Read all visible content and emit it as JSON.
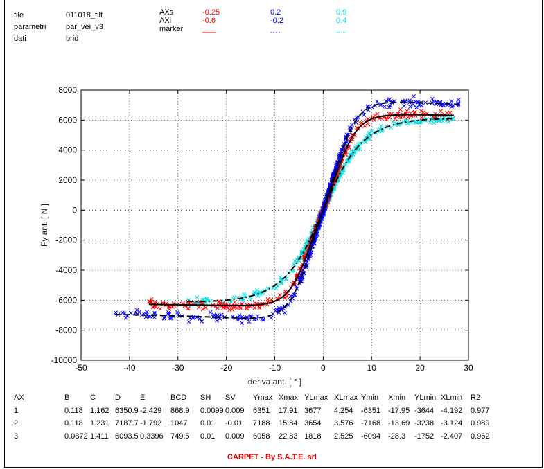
{
  "header": {
    "labels": [
      "file",
      "parametri",
      "dati"
    ],
    "values": [
      "011018_filt",
      "par_vei_v3",
      "brid"
    ],
    "axs_label": "AXs",
    "axi_label": "AXi",
    "marker_label": "marker",
    "axs": [
      "-0.25",
      "0.2",
      "0.9"
    ],
    "axi": [
      "-0.6",
      "-0.2",
      "0.4"
    ],
    "marker_styles": [
      "solid",
      "dotted",
      "dashdot"
    ],
    "series_colors": [
      "#ff0000",
      "#0000ff",
      "#00dddd"
    ]
  },
  "chart_data": {
    "type": "scatter",
    "xlabel": "deriva ant.  [ ° ]",
    "ylabel": "Fy ant. [ N ]",
    "xlim": [
      -50,
      30
    ],
    "ylim": [
      -10000,
      8000
    ],
    "xticks": [
      -50,
      -40,
      -30,
      -20,
      -10,
      0,
      10,
      20,
      30
    ],
    "yticks": [
      -10000,
      -8000,
      -6000,
      -4000,
      -2000,
      0,
      2000,
      4000,
      6000,
      8000
    ],
    "grid": true,
    "series": [
      {
        "color": "#ff0000",
        "B": 0.118,
        "C": 1.162,
        "D": 6350.9,
        "E": -2.429,
        "SH": 0.0099,
        "SV": 0.009,
        "xrange": [
          -36,
          27
        ]
      },
      {
        "color": "#0000ff",
        "B": 0.118,
        "C": 1.231,
        "D": 7187.7,
        "E": -1.792,
        "SH": 0.01,
        "SV": -0.01,
        "xrange": [
          -43,
          28
        ]
      },
      {
        "color": "#00dddd",
        "B": 0.0872,
        "C": 1.411,
        "D": 6093.5,
        "E": 0.3396,
        "SH": 0.01,
        "SV": 0.009,
        "xrange": [
          -28,
          27
        ]
      }
    ]
  },
  "table": {
    "headers": [
      "AX",
      "B",
      "C",
      "D",
      "E",
      "BCD",
      "SH",
      "SV",
      "Ymax",
      "Xmax",
      "YLmax",
      "XLmax",
      "Ymin",
      "Xmin",
      "YLmin",
      "XLmin",
      "R2"
    ],
    "rows": [
      [
        "1",
        "0.118",
        "1.162",
        "6350.9",
        "-2.429",
        "868.9",
        "0.0099",
        "0.009",
        "6351",
        "17.91",
        "3677",
        "4.254",
        "-6351",
        "-17.95",
        "-3644",
        "-4.192",
        "0.977"
      ],
      [
        "2",
        "0.118",
        "1.231",
        "7187.7",
        "-1.792",
        "1047",
        "0.01",
        "-0.01",
        "7188",
        "15.84",
        "3654",
        "3.576",
        "-7168",
        "-13.69",
        "-3238",
        "-3.124",
        "0.989"
      ],
      [
        "3",
        "0.0872",
        "1.411",
        "6093.5",
        "0.3396",
        "749.5",
        "0.01",
        "0.009",
        "6058",
        "22.83",
        "1818",
        "2.525",
        "-6094",
        "-28.3",
        "-1752",
        "-2.407",
        "0.962"
      ]
    ]
  },
  "footer": "CARPET - By S.A.T.E. srl"
}
